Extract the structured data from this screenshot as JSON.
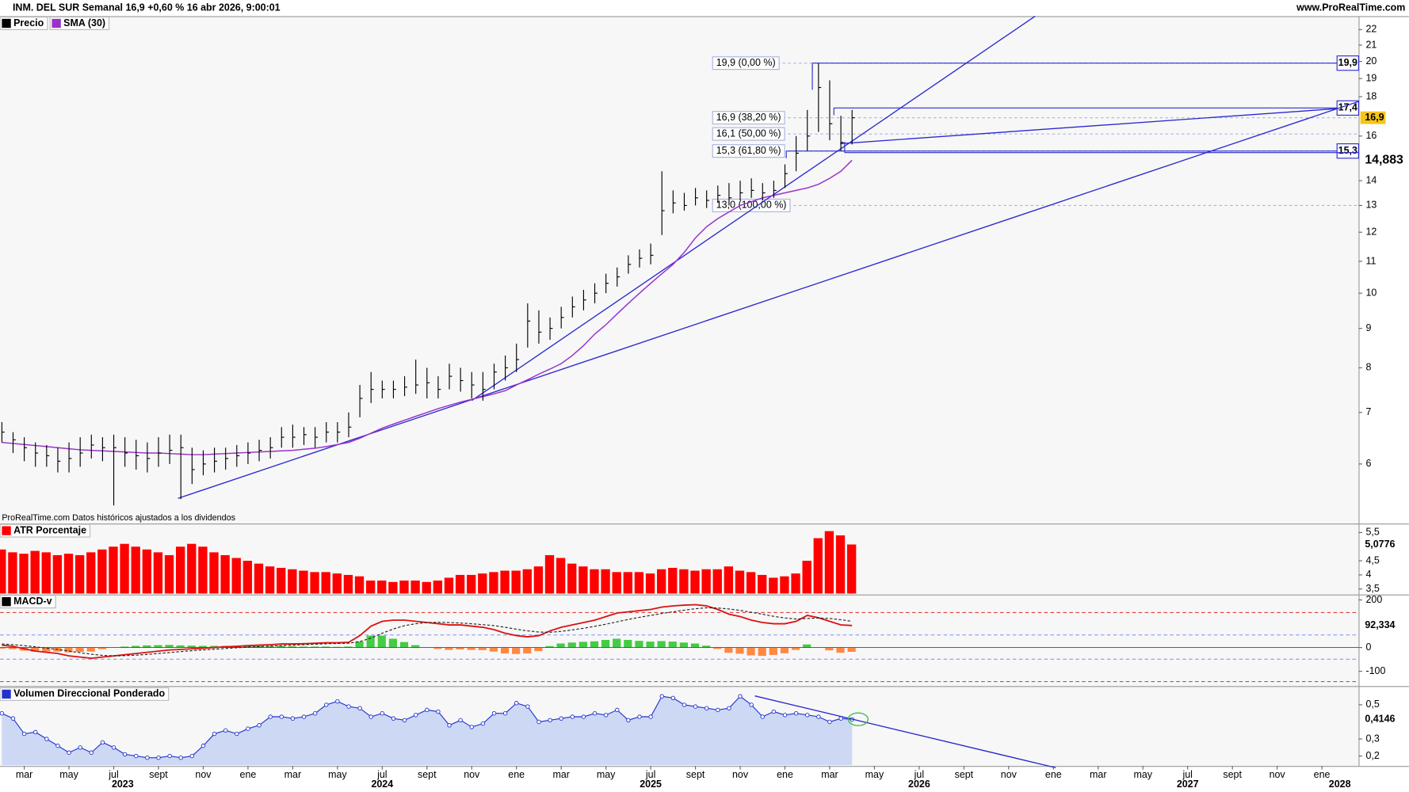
{
  "header": {
    "title": "INM. DEL SUR Semanal 16,9 +0,60 % 16 abr 2026, 9:00:01",
    "site": "www.ProRealTime.com",
    "note": "ProRealTime.com Datos históricos ajustados a los dividendos"
  },
  "chart_data": [
    {
      "type": "ohlc",
      "log": true,
      "ylim": [
        5.2,
        22.9
      ],
      "yticks": [
        6,
        7,
        8,
        9,
        10,
        11,
        12,
        13,
        14,
        16,
        18,
        19,
        20,
        21,
        22
      ],
      "grid": false,
      "x": [
        1,
        1.5,
        2,
        2.5,
        3,
        3.5,
        4,
        4.5,
        5,
        5.5,
        6,
        6.5,
        7,
        7.5,
        8,
        8.5,
        9,
        9.5,
        10,
        10.5,
        11,
        11.5,
        12,
        12.5,
        13,
        13.5,
        14,
        14.5,
        15,
        15.5,
        16,
        16.5,
        17,
        17.5,
        18,
        18.5,
        19,
        19.5,
        20,
        20.5,
        21,
        21.5,
        22,
        22.5,
        23,
        23.5,
        24,
        24.5,
        25,
        25.5,
        26,
        26.5,
        27,
        27.5,
        28,
        28.5,
        29,
        29.5,
        30,
        30.5,
        31,
        31.5,
        32,
        32.5,
        33,
        33.5,
        34,
        34.5,
        35,
        35.5,
        36,
        36.5,
        37,
        37.5,
        38,
        38.5,
        39
      ],
      "series": [
        {
          "name": "Precio",
          "color": "#000000",
          "high": [
            6.8,
            6.6,
            6.5,
            6.4,
            6.35,
            6.3,
            6.4,
            6.5,
            6.55,
            6.5,
            6.55,
            6.5,
            6.45,
            6.4,
            6.5,
            6.55,
            6.55,
            6.3,
            6.25,
            6.3,
            6.3,
            6.35,
            6.4,
            6.45,
            6.5,
            6.7,
            6.75,
            6.7,
            6.7,
            6.8,
            6.8,
            7.0,
            7.6,
            7.9,
            7.7,
            7.7,
            7.8,
            8.2,
            8.0,
            7.8,
            8.1,
            8.0,
            7.9,
            7.9,
            8.1,
            8.3,
            8.6,
            9.7,
            9.5,
            9.3,
            9.6,
            9.9,
            10.1,
            10.3,
            10.6,
            10.8,
            11.2,
            11.4,
            11.6,
            14.4,
            13.6,
            13.5,
            13.7,
            13.6,
            13.8,
            13.9,
            14.0,
            14.1,
            13.9,
            14.0,
            14.7,
            16.0,
            17.3,
            19.9,
            18.9,
            17.0,
            17.3
          ],
          "low": [
            6.4,
            6.2,
            6.05,
            5.95,
            5.95,
            5.85,
            5.85,
            5.95,
            6.1,
            6.05,
            5.3,
            5.95,
            5.9,
            5.85,
            5.95,
            6.0,
            5.4,
            5.65,
            5.8,
            5.85,
            5.9,
            5.95,
            6.0,
            6.05,
            6.1,
            6.3,
            6.3,
            6.35,
            6.3,
            6.4,
            6.4,
            6.5,
            6.9,
            7.2,
            7.3,
            7.3,
            7.35,
            7.4,
            7.3,
            7.3,
            7.5,
            7.45,
            7.3,
            7.25,
            7.5,
            7.7,
            7.9,
            8.5,
            8.6,
            8.7,
            9.0,
            9.3,
            9.5,
            9.7,
            10.0,
            10.2,
            10.6,
            10.8,
            10.9,
            11.9,
            12.7,
            12.8,
            13.0,
            12.9,
            13.1,
            13.0,
            13.2,
            13.3,
            13.2,
            13.3,
            13.7,
            14.4,
            15.3,
            16.2,
            15.8,
            15.3,
            15.6
          ],
          "close": [
            6.6,
            6.45,
            6.3,
            6.2,
            6.15,
            6.05,
            6.1,
            6.2,
            6.35,
            6.3,
            6.3,
            6.2,
            6.15,
            6.1,
            6.2,
            6.25,
            6.3,
            5.9,
            6.0,
            6.05,
            6.1,
            6.15,
            6.2,
            6.25,
            6.3,
            6.5,
            6.5,
            6.55,
            6.5,
            6.6,
            6.6,
            6.7,
            7.3,
            7.5,
            7.5,
            7.5,
            7.55,
            7.6,
            7.65,
            7.5,
            7.8,
            7.7,
            7.6,
            7.5,
            7.9,
            8.0,
            8.2,
            9.2,
            8.9,
            9.0,
            9.3,
            9.6,
            9.8,
            10.0,
            10.3,
            10.5,
            10.9,
            11.1,
            11.2,
            12.8,
            13.1,
            13.0,
            13.3,
            13.2,
            13.4,
            13.3,
            13.5,
            13.6,
            13.5,
            13.6,
            14.3,
            15.2,
            16.0,
            18.5,
            16.6,
            15.7,
            16.9
          ],
          "current": {
            "value": 16.9,
            "label": "16,9",
            "color": "#f5c518"
          }
        },
        {
          "name": "SMA (30)",
          "color": "#9932cc",
          "values": [
            6.4,
            6.38,
            6.36,
            6.34,
            6.32,
            6.3,
            6.28,
            6.26,
            6.25,
            6.24,
            6.23,
            6.22,
            6.21,
            6.2,
            6.2,
            6.19,
            6.18,
            6.17,
            6.17,
            6.18,
            6.19,
            6.2,
            6.21,
            6.22,
            6.23,
            6.24,
            6.25,
            6.27,
            6.29,
            6.32,
            6.36,
            6.4,
            6.48,
            6.58,
            6.68,
            6.76,
            6.84,
            6.92,
            7.0,
            7.08,
            7.15,
            7.22,
            7.28,
            7.34,
            7.4,
            7.47,
            7.6,
            7.72,
            7.85,
            7.97,
            8.1,
            8.3,
            8.55,
            8.85,
            9.1,
            9.4,
            9.7,
            10.0,
            10.3,
            10.6,
            10.9,
            11.3,
            11.8,
            12.2,
            12.5,
            12.75,
            13.0,
            13.15,
            13.3,
            13.4,
            13.5,
            13.6,
            13.7,
            13.85,
            14.1,
            14.4,
            14.883
          ],
          "current": {
            "value": 14.883,
            "label": "14,883",
            "color": "#8b1fb8"
          }
        }
      ],
      "fib_levels": [
        {
          "value": 19.9,
          "label": "19,9 (0,00 %)"
        },
        {
          "value": 16.9,
          "label": "16,9 (38,20 %)"
        },
        {
          "value": 16.1,
          "label": "16,1 (50,00 %)"
        },
        {
          "value": 15.3,
          "label": "15,3 (61,80 %)"
        },
        {
          "value": 13.0,
          "label": "13,0 (100,00 %)"
        }
      ],
      "boxes": [
        {
          "value": 19.9,
          "label": "19,9"
        },
        {
          "value": 17.4,
          "label": "17,4"
        },
        {
          "value": 15.3,
          "label": "15,3"
        }
      ],
      "line_color": "#2a2ad0"
    },
    {
      "type": "bar",
      "title": "ATR Porcentaje",
      "color": "#ff0000",
      "ylim": [
        3.34,
        5.82
      ],
      "yticks": [
        {
          "value": 5.5,
          "label": "5,5"
        },
        {
          "value": 4.5,
          "label": "4,5"
        },
        4,
        {
          "value": 3.5,
          "label": "3,5"
        }
      ],
      "values": [
        4.9,
        4.8,
        4.75,
        4.85,
        4.8,
        4.7,
        4.75,
        4.7,
        4.8,
        4.9,
        5.0,
        5.1,
        5.0,
        4.9,
        4.8,
        4.7,
        5.0,
        5.1,
        5.0,
        4.8,
        4.7,
        4.6,
        4.5,
        4.4,
        4.3,
        4.25,
        4.2,
        4.15,
        4.1,
        4.1,
        4.05,
        4.0,
        3.95,
        3.8,
        3.8,
        3.75,
        3.8,
        3.8,
        3.75,
        3.8,
        3.9,
        4.0,
        4.0,
        4.05,
        4.1,
        4.15,
        4.15,
        4.2,
        4.3,
        4.7,
        4.6,
        4.4,
        4.3,
        4.2,
        4.2,
        4.1,
        4.1,
        4.1,
        4.05,
        4.2,
        4.25,
        4.2,
        4.15,
        4.2,
        4.2,
        4.3,
        4.15,
        4.1,
        4.0,
        3.9,
        3.95,
        4.05,
        4.5,
        5.3,
        5.55,
        5.4,
        5.0776
      ],
      "current": {
        "value": 5.0776,
        "label": "5,0776",
        "color": "#e01010"
      }
    },
    {
      "type": "line",
      "title": "MACD-v",
      "color": "#000000",
      "ylim": [
        -158,
        223
      ],
      "yticks": [
        200,
        0,
        -100
      ],
      "levels": [
        {
          "value": 147,
          "color": "#e04040"
        },
        {
          "value": 53,
          "color": "#8899ee"
        },
        {
          "value": -49,
          "color": "#8899ee"
        },
        {
          "value": -143,
          "color": "#22aa22"
        }
      ],
      "series": [
        {
          "color": "#dd1111",
          "values": [
            10,
            5,
            -5,
            -15,
            -20,
            -25,
            -35,
            -40,
            -45,
            -40,
            -35,
            -30,
            -25,
            -20,
            -15,
            -10,
            -8,
            -5,
            -3,
            0,
            3,
            5,
            8,
            10,
            12,
            15,
            15,
            16,
            18,
            20,
            20,
            22,
            50,
            90,
            110,
            115,
            115,
            110,
            105,
            100,
            95,
            95,
            90,
            85,
            75,
            60,
            50,
            45,
            50,
            70,
            85,
            95,
            105,
            115,
            130,
            145,
            150,
            155,
            160,
            170,
            175,
            178,
            180,
            175,
            160,
            140,
            130,
            115,
            105,
            100,
            100,
            110,
            135,
            125,
            110,
            95,
            92.334
          ]
        },
        {
          "color": "#222222",
          "dashed": true,
          "values": [
            15,
            12,
            8,
            3,
            -3,
            -8,
            -15,
            -22,
            -28,
            -33,
            -35,
            -34,
            -32,
            -29,
            -25,
            -21,
            -17,
            -13,
            -10,
            -7,
            -4,
            -1,
            2,
            4,
            6,
            8,
            10,
            12,
            14,
            16,
            17,
            18,
            25,
            40,
            60,
            78,
            92,
            100,
            105,
            106,
            105,
            103,
            100,
            96,
            92,
            85,
            77,
            70,
            65,
            64,
            68,
            74,
            81,
            89,
            98,
            108,
            118,
            127,
            135,
            143,
            150,
            157,
            163,
            167,
            166,
            162,
            156,
            148,
            140,
            131,
            124,
            120,
            122,
            124,
            122,
            117,
            110
          ]
        }
      ],
      "histogram": {
        "up_color": "#44cc44",
        "down_color": "#ff8844",
        "values": [
          -5,
          -7,
          -13,
          -18,
          -17,
          -17,
          -20,
          -18,
          -17,
          -7,
          0,
          4,
          7,
          9,
          10,
          11,
          9,
          8,
          7,
          7,
          7,
          6,
          6,
          6,
          6,
          7,
          5,
          4,
          4,
          4,
          3,
          4,
          25,
          50,
          50,
          37,
          23,
          10,
          0,
          -6,
          -10,
          -8,
          -10,
          -11,
          -17,
          -25,
          -27,
          -25,
          -15,
          6,
          17,
          21,
          24,
          26,
          32,
          37,
          32,
          28,
          25,
          27,
          25,
          21,
          17,
          8,
          -6,
          -22,
          -26,
          -33,
          -35,
          -31,
          -24,
          -10,
          13,
          1,
          -12,
          -22,
          -18
        ]
      },
      "current": {
        "value": 92.334,
        "label": "92,334",
        "color": "#e01010"
      }
    },
    {
      "type": "area",
      "title": "Volumen Direccional Ponderado",
      "color": "#2233cc",
      "fill": "#cdd9f4",
      "ylim": [
        0.147,
        0.61
      ],
      "yticks": [
        {
          "value": 0.5,
          "label": "0,5"
        },
        {
          "value": 0.3,
          "label": "0,3"
        },
        {
          "value": 0.2,
          "label": "0,2"
        }
      ],
      "values": [
        0.45,
        0.42,
        0.33,
        0.34,
        0.3,
        0.26,
        0.22,
        0.25,
        0.22,
        0.28,
        0.25,
        0.21,
        0.2,
        0.19,
        0.19,
        0.2,
        0.19,
        0.2,
        0.26,
        0.33,
        0.35,
        0.33,
        0.36,
        0.38,
        0.43,
        0.43,
        0.42,
        0.43,
        0.45,
        0.5,
        0.52,
        0.49,
        0.48,
        0.43,
        0.45,
        0.42,
        0.41,
        0.44,
        0.47,
        0.46,
        0.38,
        0.41,
        0.37,
        0.39,
        0.45,
        0.45,
        0.51,
        0.49,
        0.4,
        0.41,
        0.42,
        0.43,
        0.43,
        0.45,
        0.44,
        0.47,
        0.41,
        0.43,
        0.43,
        0.55,
        0.54,
        0.5,
        0.49,
        0.48,
        0.47,
        0.48,
        0.55,
        0.5,
        0.43,
        0.46,
        0.44,
        0.45,
        0.44,
        0.43,
        0.4,
        0.42,
        0.4146
      ],
      "current": {
        "value": 0.4146,
        "label": "0,4146",
        "color": "#1a2ad0"
      },
      "xlim": [
        0.92,
        61.64
      ],
      "xticks": [
        {
          "value": 2,
          "label": "mar"
        },
        {
          "value": 4,
          "label": "may"
        },
        {
          "value": 6,
          "label": "jul"
        },
        {
          "value": 8,
          "label": "sept"
        },
        {
          "value": 10,
          "label": "nov"
        },
        {
          "value": 12,
          "label": "ene"
        },
        {
          "value": 14,
          "label": "mar"
        },
        {
          "value": 16,
          "label": "may"
        },
        {
          "value": 18,
          "label": "jul"
        },
        {
          "value": 20,
          "label": "sept"
        },
        {
          "value": 22,
          "label": "nov"
        },
        {
          "value": 24,
          "label": "ene"
        },
        {
          "value": 26,
          "label": "mar"
        },
        {
          "value": 28,
          "label": "may"
        },
        {
          "value": 30,
          "label": "jul"
        },
        {
          "value": 32,
          "label": "sept"
        },
        {
          "value": 34,
          "label": "nov"
        },
        {
          "value": 36,
          "label": "ene"
        },
        {
          "value": 38,
          "label": "mar"
        },
        {
          "value": 40,
          "label": "may"
        },
        {
          "value": 42,
          "label": "jul"
        },
        {
          "value": 44,
          "label": "sept"
        },
        {
          "value": 46,
          "label": "nov"
        },
        {
          "value": 48,
          "label": "ene"
        },
        {
          "value": 50,
          "label": "mar"
        },
        {
          "value": 52,
          "label": "may"
        },
        {
          "value": 54,
          "label": "jul"
        },
        {
          "value": 56,
          "label": "sept"
        },
        {
          "value": 58,
          "label": "nov"
        },
        {
          "value": 60,
          "label": "ene"
        }
      ],
      "year_labels": [
        {
          "value": 6.4,
          "label": "2023"
        },
        {
          "value": 18,
          "label": "2024"
        },
        {
          "value": 30,
          "label": "2025"
        },
        {
          "value": 42,
          "label": "2026"
        },
        {
          "value": 54,
          "label": "2027"
        },
        {
          "value": 60.8,
          "label": "2028"
        }
      ]
    }
  ]
}
